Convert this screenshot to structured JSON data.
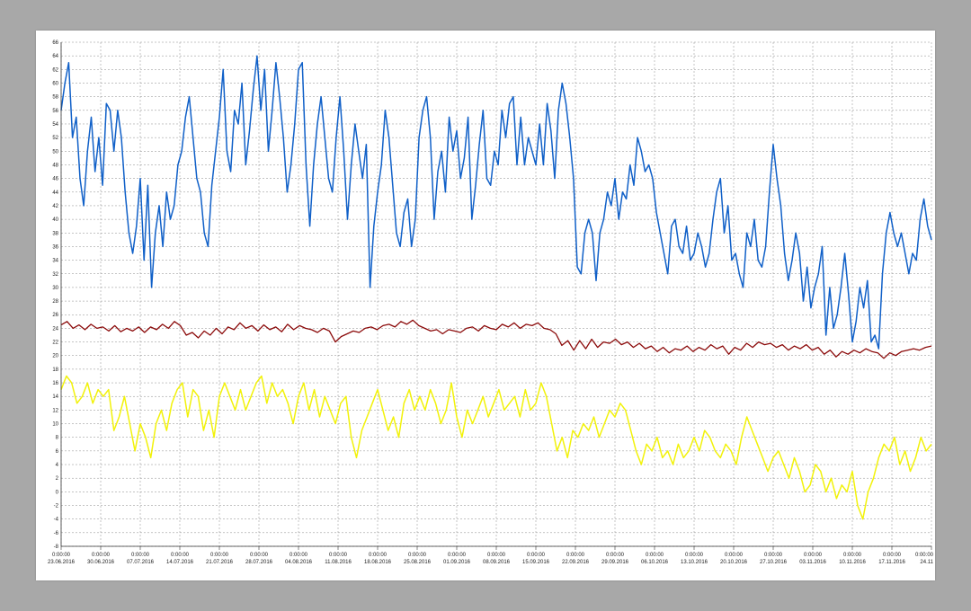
{
  "chart_data": {
    "type": "line",
    "title": "",
    "xlabel": "",
    "ylabel": "",
    "ylim": [
      -8,
      66
    ],
    "grid": true,
    "legend": "none",
    "y_ticks": [
      -8,
      -6,
      -4,
      -2,
      0,
      2,
      4,
      6,
      8,
      10,
      12,
      14,
      16,
      18,
      20,
      22,
      24,
      26,
      28,
      30,
      32,
      34,
      36,
      38,
      40,
      42,
      44,
      46,
      48,
      50,
      52,
      54,
      56,
      58,
      60,
      62,
      64,
      66
    ],
    "x_ticks": [
      {
        "time": "0:00:00",
        "date": "23.06.2016"
      },
      {
        "time": "0:00:00",
        "date": "30.06.2016"
      },
      {
        "time": "0:00:00",
        "date": "07.07.2016"
      },
      {
        "time": "0:00:00",
        "date": "14.07.2016"
      },
      {
        "time": "0:00:00",
        "date": "21.07.2016"
      },
      {
        "time": "0:00:00",
        "date": "28.07.2016"
      },
      {
        "time": "0:00:00",
        "date": "04.08.2016"
      },
      {
        "time": "0:00:00",
        "date": "11.08.2016"
      },
      {
        "time": "0:00:00",
        "date": "18.08.2016"
      },
      {
        "time": "0:00:00",
        "date": "25.08.2016"
      },
      {
        "time": "0:00:00",
        "date": "01.09.2016"
      },
      {
        "time": "0:00:00",
        "date": "08.09.2016"
      },
      {
        "time": "0:00:00",
        "date": "15.09.2016"
      },
      {
        "time": "0:00:00",
        "date": "22.09.2016"
      },
      {
        "time": "0:00:00",
        "date": "29.09.2016"
      },
      {
        "time": "0:00:00",
        "date": "06.10.2016"
      },
      {
        "time": "0:00:00",
        "date": "13.10.2016"
      },
      {
        "time": "0:00:00",
        "date": "20.10.2016"
      },
      {
        "time": "0:00:00",
        "date": "27.10.2016"
      },
      {
        "time": "0:00:00",
        "date": "03.11.2016"
      },
      {
        "time": "0:00:00",
        "date": "10.11.2016"
      },
      {
        "time": "0:00:00",
        "date": "17.11.2016"
      },
      {
        "time": "0:00:00",
        "date": "24.11"
      }
    ],
    "series": [
      {
        "color": "#1060c8",
        "values": [
          56,
          60,
          63,
          52,
          55,
          46,
          42,
          50,
          55,
          47,
          52,
          45,
          57,
          56,
          50,
          56,
          52,
          44,
          38,
          35,
          39,
          46,
          34,
          45,
          30,
          38,
          42,
          36,
          44,
          40,
          42,
          48,
          50,
          55,
          58,
          52,
          46,
          44,
          38,
          36,
          45,
          50,
          55,
          62,
          50,
          47,
          56,
          54,
          60,
          48,
          53,
          59,
          64,
          56,
          62,
          50,
          56,
          63,
          58,
          52,
          44,
          48,
          54,
          62,
          63,
          48,
          39,
          48,
          54,
          58,
          52,
          46,
          44,
          52,
          58,
          50,
          40,
          48,
          54,
          50,
          46,
          51,
          30,
          39,
          44,
          48,
          56,
          52,
          45,
          38,
          36,
          41,
          43,
          36,
          40,
          52,
          56,
          58,
          52,
          40,
          47,
          50,
          44,
          55,
          50,
          53,
          46,
          49,
          55,
          40,
          45,
          51,
          56,
          46,
          45,
          50,
          48,
          56,
          52,
          57,
          58,
          48,
          55,
          48,
          52,
          50,
          48,
          54,
          48,
          57,
          53,
          46,
          56,
          60,
          57,
          52,
          46,
          33,
          32,
          38,
          40,
          38,
          31,
          38,
          40,
          44,
          42,
          46,
          40,
          44,
          43,
          48,
          45,
          52,
          50,
          47,
          48,
          46,
          41,
          38,
          35,
          32,
          39,
          40,
          36,
          35,
          39,
          34,
          35,
          38,
          36,
          33,
          35,
          40,
          44,
          46,
          38,
          42,
          34,
          35,
          32,
          30,
          38,
          36,
          40,
          34,
          33,
          36,
          44,
          51,
          46,
          42,
          35,
          31,
          34,
          38,
          35,
          28,
          33,
          27,
          30,
          32,
          36,
          23,
          30,
          24,
          26,
          30,
          35,
          29,
          22,
          25,
          30,
          27,
          31,
          22,
          23,
          21,
          32,
          38,
          41,
          38,
          36,
          38,
          35,
          32,
          35,
          34,
          40,
          43,
          39,
          37
        ]
      },
      {
        "color": "#8b0a0a",
        "values": [
          24.5,
          25,
          24,
          24.5,
          23.8,
          24.6,
          24,
          24.2,
          23.6,
          24.4,
          23.5,
          24,
          23.6,
          24.2,
          23.4,
          24.2,
          23.8,
          24.6,
          24,
          25,
          24.4,
          23,
          23.4,
          22.6,
          23.6,
          23,
          24,
          23.2,
          24.2,
          23.8,
          24.8,
          24,
          24.4,
          23.6,
          24.5,
          23.8,
          24.2,
          23.5,
          24.6,
          23.8,
          24.4,
          24,
          23.8,
          23.4,
          24,
          23.6,
          22,
          22.8,
          23.2,
          23.6,
          23.4,
          24,
          24.2,
          23.8,
          24.4,
          24.6,
          24.2,
          25,
          24.6,
          25.2,
          24.4,
          24,
          23.6,
          23.8,
          23.2,
          23.8,
          23.6,
          23.4,
          24,
          24.2,
          23.6,
          24.4,
          24,
          23.8,
          24.6,
          24.2,
          24.8,
          24,
          24.6,
          24.4,
          24.8,
          24,
          23.8,
          23.2,
          21.5,
          22.2,
          20.8,
          22.2,
          21,
          22.4,
          21.2,
          22,
          21.8,
          22.4,
          21.6,
          22,
          21.2,
          21.8,
          21,
          21.4,
          20.6,
          21.2,
          20.4,
          21,
          20.8,
          21.4,
          20.6,
          21.2,
          20.8,
          21.6,
          21,
          21.4,
          20.2,
          21.2,
          20.8,
          21.8,
          21.2,
          22,
          21.6,
          21.8,
          21.2,
          21.6,
          20.8,
          21.4,
          21,
          21.6,
          20.8,
          21.2,
          20.2,
          20.8,
          19.8,
          20.6,
          20.2,
          20.8,
          20.4,
          21,
          20.6,
          20.4,
          19.6,
          20.4,
          20,
          20.6,
          20.8,
          21,
          20.8,
          21.2,
          21.4
        ]
      },
      {
        "color": "#f2f20a",
        "values": [
          15,
          17,
          16,
          13,
          14,
          16,
          13,
          15,
          14,
          15,
          9,
          11,
          14,
          10,
          6,
          10,
          8,
          5,
          10,
          12,
          9,
          13,
          15,
          16,
          11,
          15,
          14,
          9,
          12,
          8,
          14,
          16,
          14,
          12,
          15,
          12,
          14,
          16,
          17,
          13,
          16,
          14,
          15,
          13,
          10,
          14,
          16,
          12,
          15,
          11,
          14,
          12,
          10,
          13,
          14,
          8,
          5,
          9,
          11,
          13,
          15,
          12,
          9,
          11,
          8,
          13,
          15,
          12,
          14,
          12,
          15,
          13,
          10,
          12,
          16,
          11,
          8,
          12,
          10,
          12,
          14,
          11,
          13,
          15,
          12,
          13,
          14,
          11,
          15,
          12,
          13,
          16,
          14,
          10,
          6,
          8,
          5,
          9,
          8,
          10,
          9,
          11,
          8,
          10,
          12,
          11,
          13,
          12,
          9,
          6,
          4,
          7,
          6,
          8,
          5,
          6,
          4,
          7,
          5,
          6,
          8,
          6,
          9,
          8,
          6,
          5,
          7,
          6,
          4,
          8,
          11,
          9,
          7,
          5,
          3,
          5,
          6,
          4,
          2,
          5,
          3,
          0,
          1,
          4,
          3,
          0,
          2,
          -1,
          1,
          0,
          3,
          -2,
          -4,
          0,
          2,
          5,
          7,
          6,
          8,
          4,
          6,
          3,
          5,
          8,
          6,
          7
        ]
      }
    ]
  }
}
